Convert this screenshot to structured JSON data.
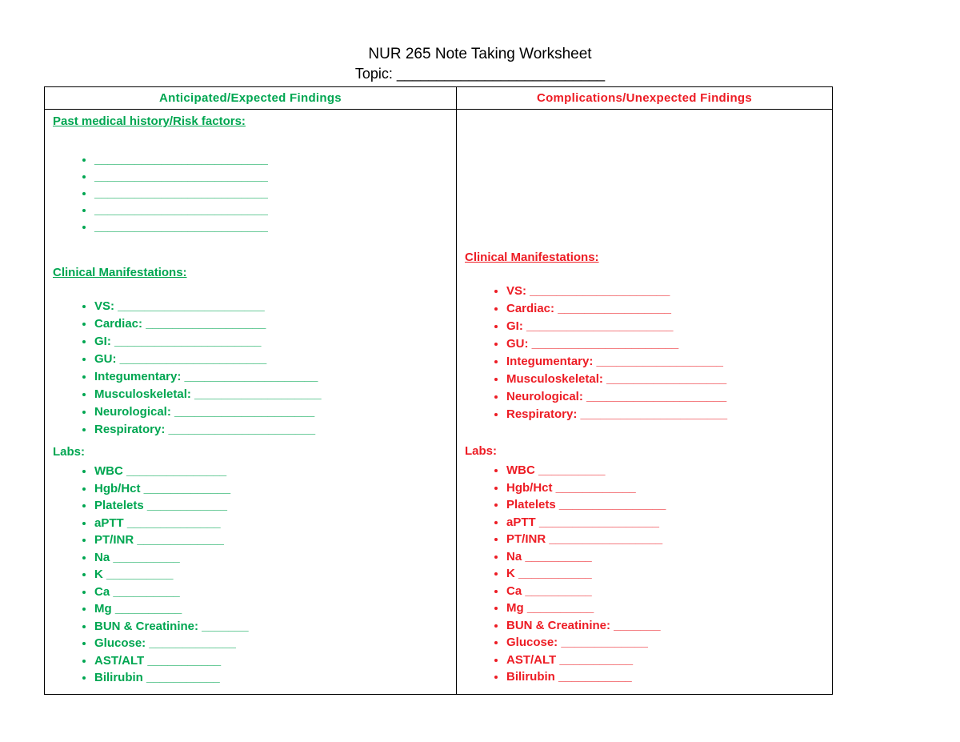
{
  "header": {
    "title": "NUR 265 Note Taking Worksheet",
    "topic": "Topic: __________________________"
  },
  "colors": {
    "anticipated_green": "#00A651",
    "complications_red": "#ED1C24",
    "text_black": "#000000"
  },
  "table": {
    "left": {
      "header": "Anticipated/Expected Findings",
      "pmh_heading": "Past medical history/Risk factors:",
      "pmh_blanks": [
        "__________________________",
        "__________________________",
        "__________________________",
        "__________________________",
        "__________________________"
      ],
      "cm_heading": "Clinical Manifestations:",
      "cm_items": [
        "VS: ______________________",
        "Cardiac: __________________",
        "GI: ______________________",
        "GU: ______________________",
        "Integumentary: ____________________",
        "Musculoskeletal: ___________________",
        "Neurological: _____________________",
        "Respiratory: ______________________"
      ],
      "labs_heading": "Labs:",
      "labs_items": [
        "WBC _______________",
        "Hgb/Hct _____________",
        "Platelets ____________",
        "aPTT ______________",
        "PT/INR _____________",
        "Na __________",
        "K __________",
        "Ca __________",
        "Mg __________",
        "BUN & Creatinine: _______",
        "Glucose: _____________",
        "AST/ALT ___________",
        "Bilirubin ___________"
      ]
    },
    "right": {
      "header": "Complications/Unexpected Findings",
      "cm_heading": "Clinical Manifestations:",
      "cm_items": [
        "VS: _____________________",
        "Cardiac: _________________",
        "GI: ______________________",
        "GU: ______________________",
        "Integumentary: ___________________",
        "Musculoskeletal: __________________",
        "Neurological: _____________________",
        "Respiratory: ______________________"
      ],
      "labs_heading": "Labs:",
      "labs_items": [
        "WBC __________",
        "Hgb/Hct ____________",
        "Platelets ________________",
        "aPTT __________________",
        "PT/INR _________________",
        "Na __________",
        "K ___________",
        "Ca __________",
        "Mg __________",
        "BUN & Creatinine: _______",
        "Glucose: _____________",
        "AST/ALT ___________",
        "Bilirubin ___________"
      ]
    }
  }
}
